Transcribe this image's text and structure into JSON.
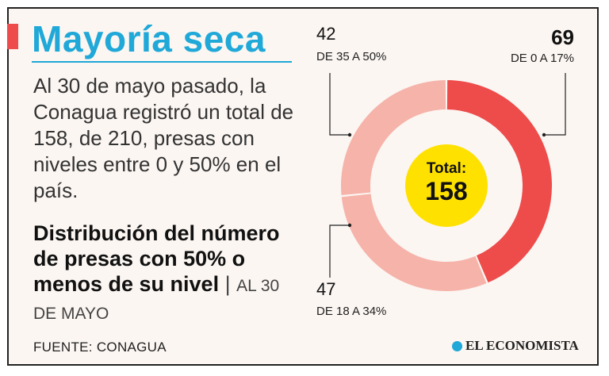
{
  "header": {
    "title": "Mayoría seca"
  },
  "intro_text": "Al 30 de mayo pasado, la Conagua registró un total de 158, de 210, presas con niveles entre 0 y 50% en el país.",
  "subhead": {
    "main": "Distribución del número de presas con 50% o menos de su nivel",
    "separator": "|",
    "date": "AL 30 DE MAYO"
  },
  "footer": {
    "source": "FUENTE: CONAGUA",
    "logo": "EL ECONOMISTA"
  },
  "colors": {
    "title": "#1fa8d8",
    "slice_dark": "#ee4b4b",
    "slice_light": "#f6b3aa",
    "center": "#ffe100"
  },
  "chart_data": {
    "type": "pie",
    "donut": true,
    "title": "Distribución del número de presas con 50% o menos de su nivel",
    "center_label": "Total:",
    "center_value": "158",
    "total": 158,
    "series": [
      {
        "name": "DE 0 A 17%",
        "value": 69,
        "label": "69",
        "color": "#ee4b4b"
      },
      {
        "name": "DE 18 A 34%",
        "value": 47,
        "label": "47",
        "color": "#f6b3aa"
      },
      {
        "name": "DE 35 A 50%",
        "value": 42,
        "label": "42",
        "color": "#f6b3aa"
      }
    ]
  }
}
